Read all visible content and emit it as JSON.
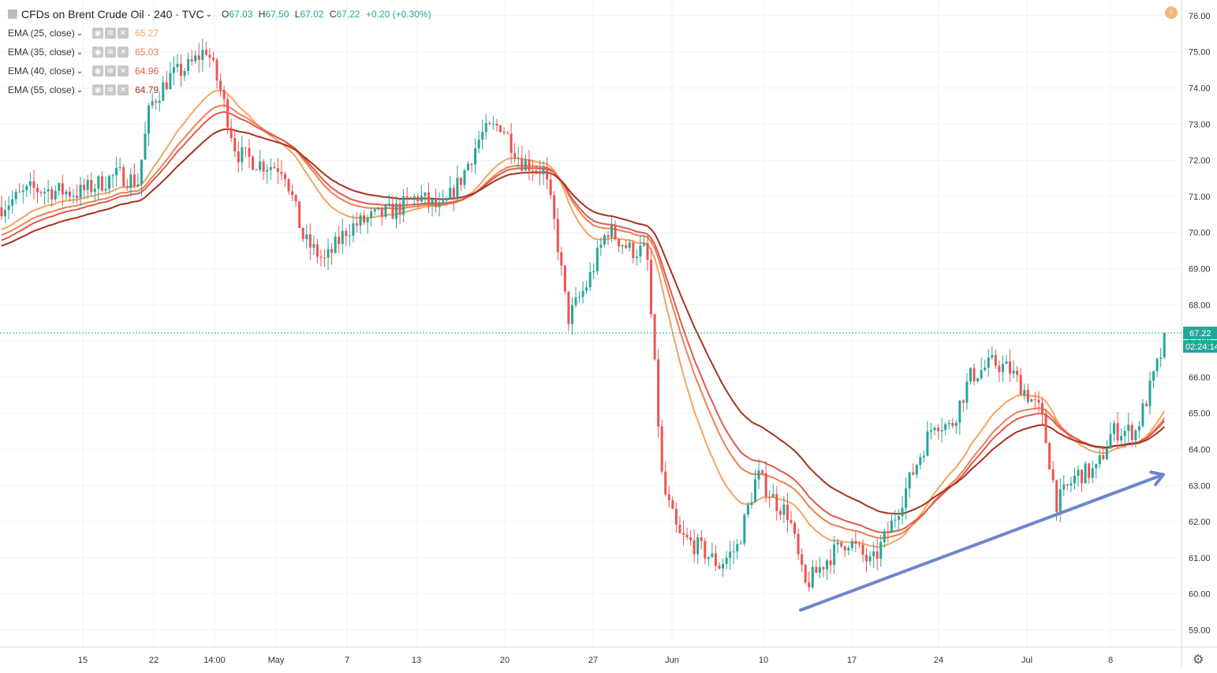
{
  "header": {
    "symbol_title": "CFDs on Brent Crude Oil · 240 · TVC",
    "open_label": "O",
    "open": "67.03",
    "high_label": "H",
    "high": "67.50",
    "low_label": "L",
    "low": "67.02",
    "close_label": "C",
    "close": "67.22",
    "change": "+0.20 (+0.30%)"
  },
  "indicators": [
    {
      "name": "EMA (25, close)",
      "value": "65.27",
      "color": "#f4a460"
    },
    {
      "name": "EMA (35, close)",
      "value": "65.03",
      "color": "#ee8050"
    },
    {
      "name": "EMA (40, close)",
      "value": "64.96",
      "color": "#e05a4e"
    },
    {
      "name": "EMA (55, close)",
      "value": "64.79",
      "color": "#a8321e"
    }
  ],
  "icons": {
    "visibility": "eye-icon",
    "settings": "gear-icon",
    "remove": "close-icon",
    "alert": "alert-icon",
    "chart_settings": "gear-icon"
  },
  "price_tag": {
    "value": "67.22",
    "countdown": "02:24:14",
    "color": "#26a69a"
  },
  "chart_data": {
    "type": "candlestick",
    "title": "CFDs on Brent Crude Oil · 240 · TVC",
    "ylim": [
      58.6,
      76.4
    ],
    "y_ticks": [
      "59.00",
      "60.00",
      "61.00",
      "62.00",
      "63.00",
      "64.00",
      "65.00",
      "66.00",
      "67.00",
      "68.00",
      "69.00",
      "70.00",
      "71.00",
      "72.00",
      "73.00",
      "74.00",
      "75.00",
      "76.00"
    ],
    "x_ticks": [
      "15",
      "22",
      "14:00",
      "May",
      "7",
      "13",
      "20",
      "27",
      "Jun",
      "10",
      "17",
      "24",
      "Jul",
      "8"
    ],
    "grid": true,
    "colors": {
      "up": "#26a69a",
      "down": "#ef5350"
    },
    "price_anchors": [
      [
        0,
        70.7
      ],
      [
        40,
        71.2
      ],
      [
        100,
        71.1
      ],
      [
        150,
        71.6
      ],
      [
        175,
        71.4
      ],
      [
        190,
        73.5
      ],
      [
        215,
        74.3
      ],
      [
        240,
        74.6
      ],
      [
        262,
        75.1
      ],
      [
        280,
        73.9
      ],
      [
        300,
        72.2
      ],
      [
        330,
        71.9
      ],
      [
        360,
        71.8
      ],
      [
        385,
        69.8
      ],
      [
        412,
        69.2
      ],
      [
        440,
        70.1
      ],
      [
        470,
        70.4
      ],
      [
        500,
        70.6
      ],
      [
        530,
        71.0
      ],
      [
        560,
        70.6
      ],
      [
        585,
        71.5
      ],
      [
        610,
        72.7
      ],
      [
        635,
        73.0
      ],
      [
        660,
        72.0
      ],
      [
        690,
        71.7
      ],
      [
        705,
        70.0
      ],
      [
        720,
        67.6
      ],
      [
        745,
        68.6
      ],
      [
        770,
        70.1
      ],
      [
        800,
        69.5
      ],
      [
        820,
        69.5
      ],
      [
        840,
        63.0
      ],
      [
        860,
        61.6
      ],
      [
        885,
        61.3
      ],
      [
        912,
        60.8
      ],
      [
        935,
        61.3
      ],
      [
        960,
        63.3
      ],
      [
        985,
        62.5
      ],
      [
        1000,
        62.2
      ],
      [
        1020,
        60.2
      ],
      [
        1050,
        61.0
      ],
      [
        1075,
        61.5
      ],
      [
        1105,
        60.8
      ],
      [
        1130,
        61.9
      ],
      [
        1160,
        63.5
      ],
      [
        1185,
        64.8
      ],
      [
        1205,
        64.6
      ],
      [
        1230,
        66.0
      ],
      [
        1260,
        66.4
      ],
      [
        1280,
        66.2
      ],
      [
        1300,
        65.6
      ],
      [
        1320,
        65.0
      ],
      [
        1340,
        62.5
      ],
      [
        1365,
        63.3
      ],
      [
        1390,
        63.4
      ],
      [
        1410,
        64.5
      ],
      [
        1440,
        64.5
      ],
      [
        1460,
        65.8
      ],
      [
        1480,
        67.2
      ]
    ],
    "series": [
      {
        "name": "EMA (25, close)",
        "value": 65.27
      },
      {
        "name": "EMA (35, close)",
        "value": 65.03
      },
      {
        "name": "EMA (40, close)",
        "value": 64.96
      },
      {
        "name": "EMA (55, close)",
        "value": 64.79
      }
    ],
    "current_price": 67.22,
    "trendline": {
      "from": [
        1015,
        59.55
      ],
      "to": [
        1475,
        63.3
      ],
      "color": "#6f86c9"
    }
  }
}
